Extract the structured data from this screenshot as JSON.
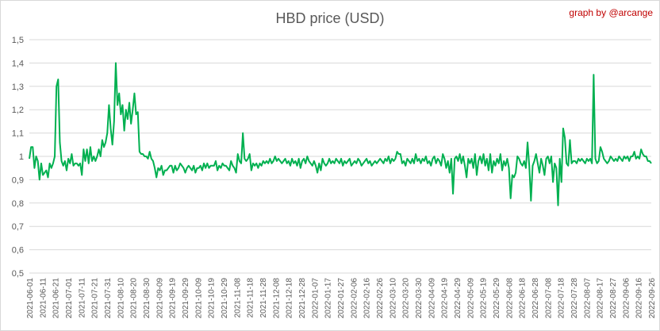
{
  "chart_data": {
    "type": "line",
    "title": "HBD price (USD)",
    "credit": "graph by @arcange",
    "ylim": [
      0.5,
      1.5
    ],
    "yticks": [
      "0,5",
      "0,6",
      "0,7",
      "0,8",
      "0,9",
      "1",
      "1,1",
      "1,2",
      "1,3",
      "1,4",
      "1,5"
    ],
    "grid": true,
    "line_color": "#00b050",
    "x_tick_labels": [
      "2021-06-01",
      "2021-06-11",
      "2021-06-21",
      "2021-07-01",
      "2021-07-11",
      "2021-07-21",
      "2021-07-31",
      "2021-08-10",
      "2021-08-20",
      "2021-08-30",
      "2021-09-09",
      "2021-09-19",
      "2021-09-29",
      "2021-10-09",
      "2021-10-19",
      "2021-10-29",
      "2021-11-08",
      "2021-11-18",
      "2021-11-28",
      "2021-12-08",
      "2021-12-18",
      "2021-12-28",
      "2022-01-07",
      "2022-01-17",
      "2022-01-27",
      "2022-02-06",
      "2022-02-16",
      "2022-02-26",
      "2022-03-10",
      "2022-03-20",
      "2022-03-30",
      "2022-04-09",
      "2022-04-19",
      "2022-04-29",
      "2022-05-09",
      "2022-05-19",
      "2022-05-29",
      "2022-06-08",
      "2022-06-18",
      "2022-06-28",
      "2022-07-08",
      "2022-07-18",
      "2022-07-28",
      "2022-08-07",
      "2022-08-17",
      "2022-08-27",
      "2022-09-06",
      "2022-09-16",
      "2022-09-26"
    ],
    "series": [
      {
        "values": [
          0.99,
          1.04,
          1.04,
          0.95,
          1.0,
          0.98,
          0.9,
          0.97,
          0.92,
          0.93,
          0.94,
          0.91,
          0.97,
          0.95,
          0.97,
          1.0,
          1.3,
          1.33,
          1.06,
          0.98,
          0.96,
          0.98,
          0.94,
          0.99,
          0.97,
          1.01,
          0.96,
          0.97,
          0.97,
          0.96,
          0.97,
          0.92,
          1.03,
          0.98,
          1.03,
          0.97,
          1.04,
          0.98,
          1.0,
          0.98,
          1.0,
          1.03,
          1.0,
          1.07,
          1.04,
          1.06,
          1.1,
          1.22,
          1.12,
          1.05,
          1.15,
          1.4,
          1.22,
          1.27,
          1.18,
          1.22,
          1.11,
          1.2,
          1.16,
          1.23,
          1.14,
          1.2,
          1.27,
          1.18,
          1.19,
          1.02,
          1.01,
          1.01,
          1.0,
          1.0,
          0.99,
          1.02,
          0.99,
          0.98,
          0.95,
          0.91,
          0.95,
          0.94,
          0.96,
          0.92,
          0.94,
          0.94,
          0.95,
          0.96,
          0.96,
          0.93,
          0.96,
          0.94,
          0.95,
          0.97,
          0.96,
          0.95,
          0.93,
          0.95,
          0.96,
          0.95,
          0.94,
          0.96,
          0.93,
          0.95,
          0.95,
          0.96,
          0.94,
          0.97,
          0.95,
          0.97,
          0.95,
          0.96,
          0.96,
          0.96,
          0.98,
          0.94,
          0.96,
          0.95,
          0.97,
          0.96,
          0.96,
          0.95,
          0.94,
          0.98,
          0.96,
          0.95,
          0.93,
          1.01,
          0.98,
          0.97,
          1.1,
          0.99,
          0.98,
          0.99,
          1.01,
          0.94,
          0.97,
          0.96,
          0.97,
          0.95,
          0.97,
          0.96,
          0.98,
          0.97,
          0.98,
          0.97,
          0.99,
          0.97,
          0.98,
          1.0,
          0.98,
          0.99,
          0.98,
          0.97,
          0.98,
          0.99,
          0.97,
          0.98,
          0.96,
          0.99,
          0.97,
          0.98,
          0.96,
          0.99,
          0.95,
          0.98,
          0.99,
          0.97,
          1.0,
          0.98,
          0.97,
          0.96,
          0.98,
          0.96,
          0.93,
          0.97,
          0.94,
          0.99,
          0.97,
          0.96,
          0.97,
          0.99,
          0.97,
          0.98,
          0.97,
          0.99,
          0.98,
          0.97,
          0.99,
          0.96,
          0.98,
          0.97,
          0.98,
          0.99,
          0.96,
          0.97,
          0.98,
          0.97,
          0.99,
          0.98,
          0.96,
          0.97,
          0.98,
          0.99,
          0.97,
          0.98,
          0.96,
          0.97,
          0.98,
          0.97,
          0.98,
          0.99,
          0.98,
          0.97,
          0.99,
          0.98,
          1.0,
          0.97,
          0.99,
          0.98,
          0.99,
          1.02,
          1.01,
          1.01,
          0.97,
          0.98,
          0.96,
          0.99,
          0.98,
          0.97,
          0.99,
          0.97,
          1.01,
          0.98,
          0.99,
          0.97,
          0.99,
          0.98,
          1.0,
          0.97,
          0.98,
          0.96,
          0.99,
          1.0,
          0.97,
          0.99,
          0.98,
          0.96,
          1.01,
          0.99,
          0.95,
          0.98,
          0.93,
          0.99,
          0.84,
          0.99,
          1.0,
          0.98,
          1.01,
          0.97,
          1.0,
          0.96,
          0.91,
          0.99,
          0.97,
          0.99,
          0.95,
          1.01,
          0.92,
          0.98,
          1.0,
          0.97,
          1.01,
          0.96,
          0.99,
          0.94,
          1.01,
          0.93,
          0.98,
          0.96,
          0.99,
          0.97,
          1.01,
          0.94,
          0.98,
          0.96,
          0.99,
          0.95,
          0.82,
          0.92,
          0.91,
          0.93,
          1.0,
          0.99,
          0.97,
          0.96,
          0.98,
          0.95,
          1.06,
          0.96,
          0.81,
          0.96,
          0.98,
          1.01,
          0.97,
          0.93,
          0.99,
          0.96,
          0.92,
          0.99,
          1.0,
          0.97,
          1.0,
          0.89,
          0.97,
          0.95,
          0.79,
          0.99,
          0.89,
          1.12,
          1.08,
          0.97,
          0.96,
          1.07,
          0.97,
          0.98,
          0.98,
          0.97,
          0.99,
          0.98,
          0.99,
          0.98,
          0.97,
          0.99,
          0.98,
          0.99,
          0.97,
          1.35,
          0.99,
          0.97,
          0.98,
          1.04,
          1.02,
          0.99,
          0.98,
          0.97,
          0.98,
          1.0,
          0.99,
          0.98,
          0.99,
          0.98,
          1.0,
          0.99,
          0.98,
          1.0,
          0.99,
          1.0,
          0.98,
          1.0,
          1.0,
          1.02,
          0.99,
          1.0,
          0.99,
          1.03,
          1.01,
          1.0,
          1.0,
          0.98,
          0.98,
          0.97
        ]
      }
    ]
  }
}
